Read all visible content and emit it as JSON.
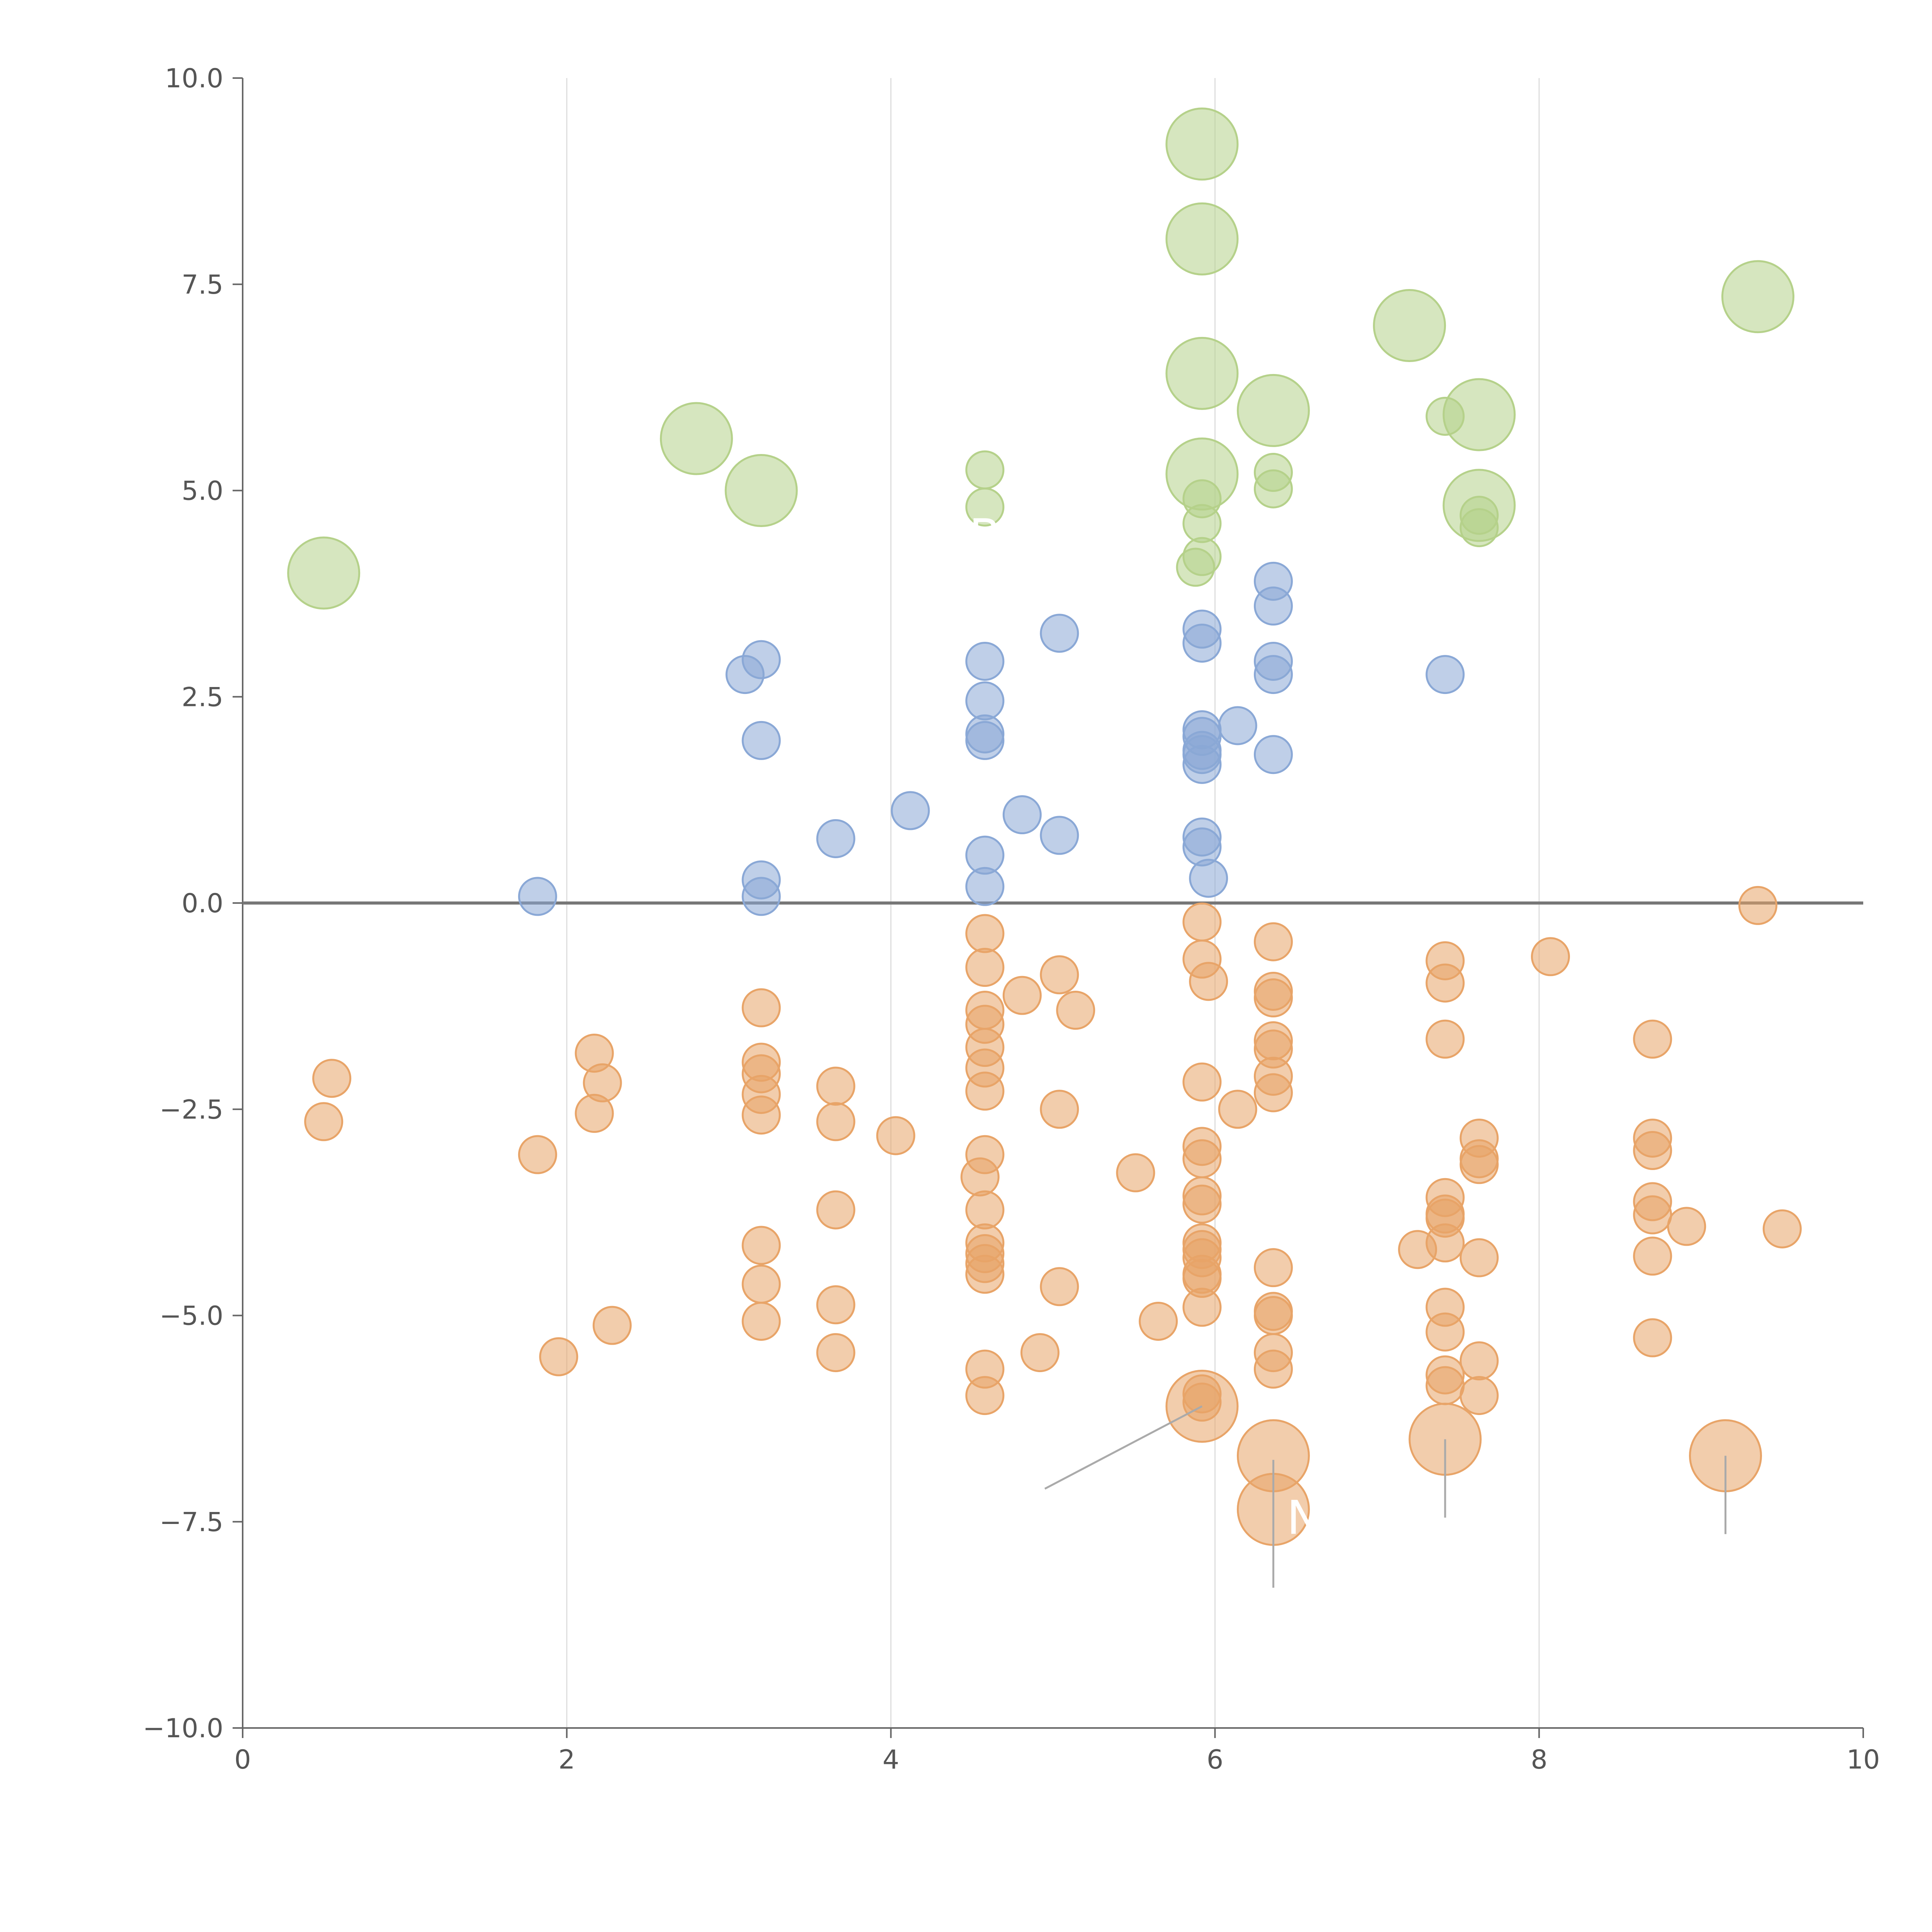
{
  "chart_data": {
    "type": "scatter",
    "title": "",
    "xlabel": "",
    "ylabel": "",
    "xlim": [
      0,
      10
    ],
    "ylim": [
      -10,
      10
    ],
    "x_ticks": [
      0,
      2,
      4,
      6,
      8,
      10
    ],
    "x_tick_labels": [
      "0",
      "2",
      "4",
      "6",
      "8",
      "10"
    ],
    "y_ticks": [
      -10,
      -7.5,
      -5,
      -2.5,
      0,
      2.5,
      5,
      7.5,
      10
    ],
    "y_tick_labels": [
      "−10.0",
      "−7.5",
      "−5.0",
      "−2.5",
      "0.0",
      "2.5",
      "5.0",
      "7.5",
      "10.0"
    ],
    "grid": "vertical",
    "reference_line_y": 0,
    "annotations": [
      {
        "text": "B",
        "x": 4.58,
        "y": 4.45
      },
      {
        "text": "N",
        "x": 6.55,
        "y": -7.45
      }
    ],
    "series": [
      {
        "name": "orange",
        "color": "#e8a468",
        "points": [
          {
            "x": 0.5,
            "y": -2.65
          },
          {
            "x": 0.55,
            "y": -2.125
          },
          {
            "x": 1.82,
            "y": -3.05
          },
          {
            "x": 1.95,
            "y": -5.5
          },
          {
            "x": 2.17,
            "y": -1.82
          },
          {
            "x": 2.22,
            "y": -2.18
          },
          {
            "x": 2.17,
            "y": -2.55
          },
          {
            "x": 2.28,
            "y": -5.12
          },
          {
            "x": 3.2,
            "y": -1.27
          },
          {
            "x": 3.2,
            "y": -1.93
          },
          {
            "x": 3.2,
            "y": -2.07
          },
          {
            "x": 3.2,
            "y": -2.32
          },
          {
            "x": 3.2,
            "y": -2.57
          },
          {
            "x": 3.2,
            "y": -4.15
          },
          {
            "x": 3.2,
            "y": -4.62
          },
          {
            "x": 3.2,
            "y": -5.07
          },
          {
            "x": 3.66,
            "y": -2.22
          },
          {
            "x": 3.66,
            "y": -2.65
          },
          {
            "x": 3.66,
            "y": -3.72
          },
          {
            "x": 3.66,
            "y": -4.87
          },
          {
            "x": 3.66,
            "y": -5.45
          },
          {
            "x": 4.03,
            "y": -2.82
          },
          {
            "x": 4.58,
            "y": -0.37
          },
          {
            "x": 4.58,
            "y": -0.78
          },
          {
            "x": 4.58,
            "y": -1.3
          },
          {
            "x": 4.58,
            "y": -1.47
          },
          {
            "x": 4.58,
            "y": -1.75
          },
          {
            "x": 4.58,
            "y": -2.0
          },
          {
            "x": 4.58,
            "y": -2.28
          },
          {
            "x": 4.58,
            "y": -3.05
          },
          {
            "x": 4.55,
            "y": -3.32
          },
          {
            "x": 4.58,
            "y": -3.72
          },
          {
            "x": 4.58,
            "y": -4.12
          },
          {
            "x": 4.58,
            "y": -4.25
          },
          {
            "x": 4.58,
            "y": -4.37
          },
          {
            "x": 4.58,
            "y": -4.5
          },
          {
            "x": 4.58,
            "y": -5.65
          },
          {
            "x": 4.58,
            "y": -5.97
          },
          {
            "x": 4.81,
            "y": -1.12
          },
          {
            "x": 4.92,
            "y": -5.45
          },
          {
            "x": 5.04,
            "y": -0.87
          },
          {
            "x": 5.04,
            "y": -2.5
          },
          {
            "x": 5.04,
            "y": -4.65
          },
          {
            "x": 5.14,
            "y": -1.3
          },
          {
            "x": 5.51,
            "y": -3.27
          },
          {
            "x": 5.65,
            "y": -5.07
          },
          {
            "x": 5.92,
            "y": -0.23
          },
          {
            "x": 5.92,
            "y": -0.68
          },
          {
            "x": 5.96,
            "y": -0.95
          },
          {
            "x": 5.92,
            "y": -2.17
          },
          {
            "x": 5.92,
            "y": -2.95
          },
          {
            "x": 5.92,
            "y": -3.1
          },
          {
            "x": 5.92,
            "y": -3.55
          },
          {
            "x": 5.92,
            "y": -3.65
          },
          {
            "x": 5.92,
            "y": -4.12
          },
          {
            "x": 5.92,
            "y": -4.2
          },
          {
            "x": 5.92,
            "y": -4.3
          },
          {
            "x": 5.92,
            "y": -4.5
          },
          {
            "x": 5.92,
            "y": -4.55
          },
          {
            "x": 5.92,
            "y": -4.9
          },
          {
            "x": 5.92,
            "y": -5.95
          },
          {
            "x": 5.92,
            "y": -6.05
          },
          {
            "x": 6.14,
            "y": -2.5
          },
          {
            "x": 6.36,
            "y": -0.47
          },
          {
            "x": 6.36,
            "y": -1.07
          },
          {
            "x": 6.36,
            "y": -1.15
          },
          {
            "x": 6.36,
            "y": -1.67
          },
          {
            "x": 6.36,
            "y": -1.77
          },
          {
            "x": 6.36,
            "y": -2.1
          },
          {
            "x": 6.36,
            "y": -2.3
          },
          {
            "x": 6.36,
            "y": -4.42
          },
          {
            "x": 6.36,
            "y": -4.95
          },
          {
            "x": 6.36,
            "y": -5.0
          },
          {
            "x": 6.36,
            "y": -5.45
          },
          {
            "x": 6.36,
            "y": -5.65
          },
          {
            "x": 7.25,
            "y": -4.2
          },
          {
            "x": 7.42,
            "y": -0.7
          },
          {
            "x": 7.42,
            "y": -0.97
          },
          {
            "x": 7.42,
            "y": -1.65
          },
          {
            "x": 7.42,
            "y": -3.57
          },
          {
            "x": 7.42,
            "y": -3.77
          },
          {
            "x": 7.42,
            "y": -3.82
          },
          {
            "x": 7.42,
            "y": -4.12
          },
          {
            "x": 7.42,
            "y": -4.9
          },
          {
            "x": 7.42,
            "y": -5.2
          },
          {
            "x": 7.42,
            "y": -5.72
          },
          {
            "x": 7.42,
            "y": -5.85
          },
          {
            "x": 7.63,
            "y": -2.85
          },
          {
            "x": 7.63,
            "y": -3.1
          },
          {
            "x": 7.63,
            "y": -3.17
          },
          {
            "x": 7.63,
            "y": -4.3
          },
          {
            "x": 7.63,
            "y": -5.55
          },
          {
            "x": 7.63,
            "y": -5.97
          },
          {
            "x": 8.07,
            "y": -0.65
          },
          {
            "x": 8.7,
            "y": -1.65
          },
          {
            "x": 8.7,
            "y": -2.85
          },
          {
            "x": 8.7,
            "y": -3.0
          },
          {
            "x": 8.7,
            "y": -3.62
          },
          {
            "x": 8.7,
            "y": -3.78
          },
          {
            "x": 8.7,
            "y": -4.28
          },
          {
            "x": 8.7,
            "y": -5.27
          },
          {
            "x": 8.91,
            "y": -3.92
          },
          {
            "x": 9.35,
            "y": -0.03
          },
          {
            "x": 9.5,
            "y": -3.95
          }
        ],
        "bubbles": [
          {
            "x": 5.92,
            "y": -6.1
          },
          {
            "x": 6.36,
            "y": -6.7
          },
          {
            "x": 6.36,
            "y": -7.35
          },
          {
            "x": 7.42,
            "y": -6.5
          },
          {
            "x": 9.15,
            "y": -6.7
          }
        ]
      },
      {
        "name": "blue",
        "color": "#8aa8d6",
        "points": [
          {
            "x": 1.82,
            "y": 0.08
          },
          {
            "x": 3.1,
            "y": 2.77
          },
          {
            "x": 3.2,
            "y": 2.95
          },
          {
            "x": 3.2,
            "y": 1.97
          },
          {
            "x": 3.2,
            "y": 0.28
          },
          {
            "x": 3.2,
            "y": 0.08
          },
          {
            "x": 3.66,
            "y": 0.78
          },
          {
            "x": 4.12,
            "y": 1.12
          },
          {
            "x": 4.58,
            "y": 2.93
          },
          {
            "x": 4.58,
            "y": 2.45
          },
          {
            "x": 4.58,
            "y": 2.05
          },
          {
            "x": 4.58,
            "y": 1.97
          },
          {
            "x": 4.58,
            "y": 0.58
          },
          {
            "x": 4.58,
            "y": 0.2
          },
          {
            "x": 4.81,
            "y": 1.07
          },
          {
            "x": 5.04,
            "y": 3.27
          },
          {
            "x": 5.04,
            "y": 0.82
          },
          {
            "x": 5.92,
            "y": 3.32
          },
          {
            "x": 5.92,
            "y": 3.15
          },
          {
            "x": 5.92,
            "y": 2.1
          },
          {
            "x": 5.92,
            "y": 2.02
          },
          {
            "x": 5.92,
            "y": 1.85
          },
          {
            "x": 5.92,
            "y": 1.8
          },
          {
            "x": 5.92,
            "y": 1.68
          },
          {
            "x": 5.92,
            "y": 0.8
          },
          {
            "x": 5.92,
            "y": 0.68
          },
          {
            "x": 5.96,
            "y": 0.3
          },
          {
            "x": 6.14,
            "y": 2.15
          },
          {
            "x": 6.36,
            "y": 3.9
          },
          {
            "x": 6.36,
            "y": 3.6
          },
          {
            "x": 6.36,
            "y": 2.93
          },
          {
            "x": 6.36,
            "y": 2.77
          },
          {
            "x": 6.36,
            "y": 1.8
          },
          {
            "x": 7.42,
            "y": 2.77
          }
        ],
        "bubbles": []
      },
      {
        "name": "green",
        "color": "#b5d18a",
        "points": [
          {
            "x": 4.58,
            "y": 5.25
          },
          {
            "x": 4.58,
            "y": 4.8
          },
          {
            "x": 5.92,
            "y": 4.9
          },
          {
            "x": 5.92,
            "y": 4.6
          },
          {
            "x": 5.92,
            "y": 4.2
          },
          {
            "x": 5.88,
            "y": 4.07
          },
          {
            "x": 6.36,
            "y": 5.22
          },
          {
            "x": 6.36,
            "y": 5.02
          },
          {
            "x": 7.42,
            "y": 5.9
          },
          {
            "x": 7.63,
            "y": 4.7
          },
          {
            "x": 7.63,
            "y": 4.55
          }
        ],
        "bubbles": [
          {
            "x": 0.5,
            "y": 4.0
          },
          {
            "x": 2.8,
            "y": 5.63
          },
          {
            "x": 3.2,
            "y": 5.0
          },
          {
            "x": 5.92,
            "y": 9.2
          },
          {
            "x": 5.92,
            "y": 8.05
          },
          {
            "x": 5.92,
            "y": 6.42
          },
          {
            "x": 5.92,
            "y": 5.2
          },
          {
            "x": 6.36,
            "y": 5.97
          },
          {
            "x": 7.2,
            "y": 7.0
          },
          {
            "x": 7.63,
            "y": 5.92
          },
          {
            "x": 7.63,
            "y": 4.82
          },
          {
            "x": 9.35,
            "y": 7.35
          }
        ]
      }
    ]
  }
}
